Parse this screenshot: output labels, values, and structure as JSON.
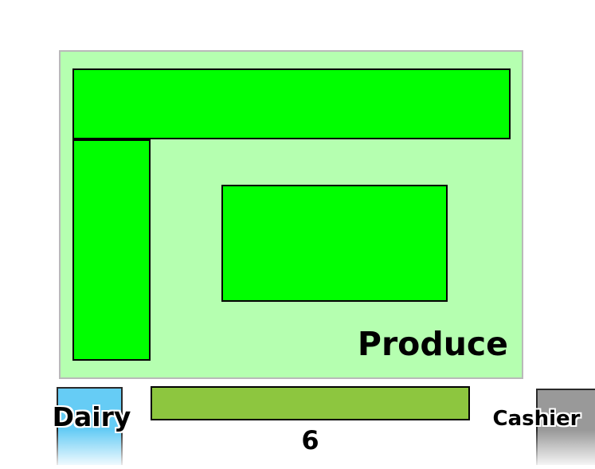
{
  "colors": {
    "produce_area": "#b5ffb0",
    "produce_shelf": "#00ff00",
    "aisle": "#8dc63f",
    "dairy": "#66ccf5",
    "cashier": "#999999"
  },
  "sections": {
    "produce": {
      "label": "Produce"
    },
    "dairy": {
      "label": "Dairy"
    },
    "aisle": {
      "label": "6"
    },
    "cashier": {
      "label": "Cashier"
    }
  }
}
